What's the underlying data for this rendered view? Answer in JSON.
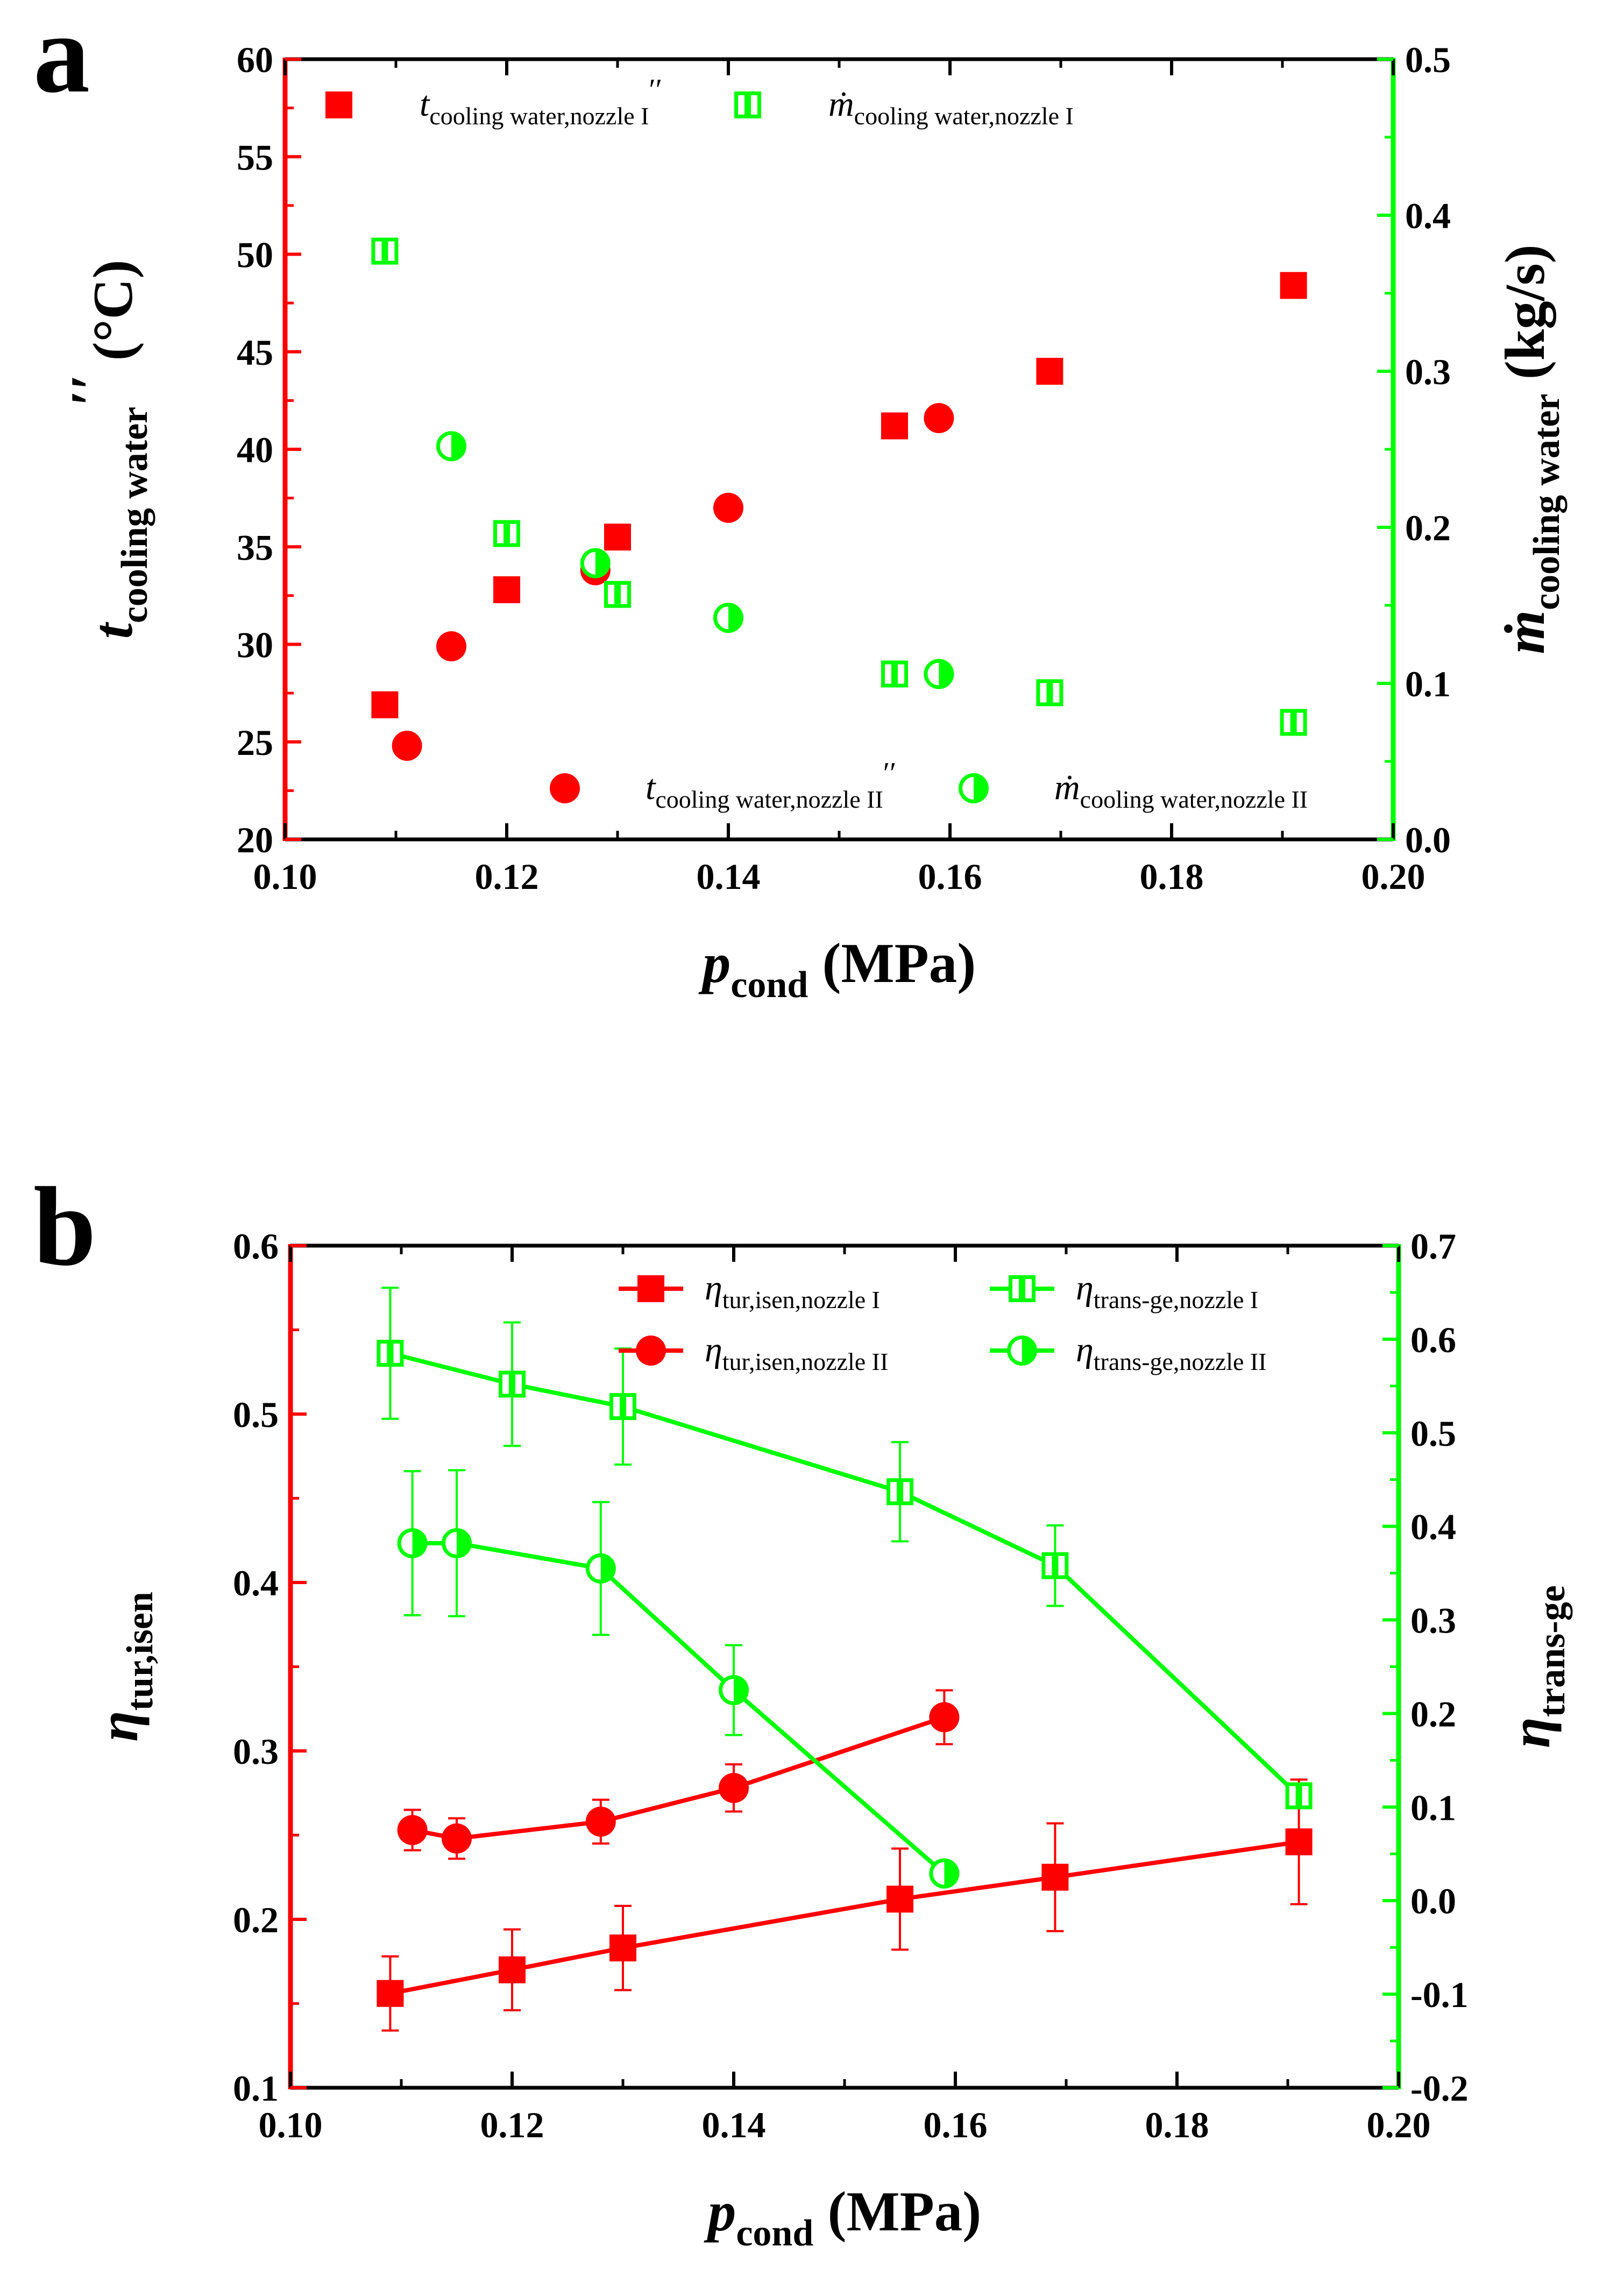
{
  "chart_data": [
    {
      "panel": "a",
      "type": "scatter",
      "xlabel": {
        "main": "p",
        "sub": "cond",
        "unit": "(MPa)"
      },
      "ylabel_left": {
        "main": "t",
        "sub": "cooling water",
        "sup": "′′",
        "unit": "(°C)"
      },
      "ylabel_right": {
        "main": "ṁ",
        "sub": "cooling water",
        "unit": "(kg/s)"
      },
      "xlim": [
        0.1,
        0.2
      ],
      "ylim_left": [
        20,
        60
      ],
      "ylim_right": [
        0.0,
        0.5
      ],
      "x_ticks": [
        "0.10",
        "0.12",
        "0.14",
        "0.16",
        "0.18",
        "0.20"
      ],
      "y_left_ticks": [
        "20",
        "25",
        "30",
        "35",
        "40",
        "45",
        "50",
        "55",
        "60"
      ],
      "y_right_ticks": [
        "0.0",
        "0.1",
        "0.2",
        "0.3",
        "0.4",
        "0.5"
      ],
      "left_color": "#ff0000",
      "right_color": "#00ff00",
      "series": [
        {
          "name": "t cooling water,nozzle I ′′",
          "axis": "left",
          "marker": "square-filled",
          "color": "#ff0000",
          "x": [
            0.109,
            0.12,
            0.13,
            0.155,
            0.169,
            0.191
          ],
          "y": [
            26.9,
            32.8,
            35.5,
            41.2,
            44.0,
            48.4
          ]
        },
        {
          "name": "t cooling water,nozzle II ′′",
          "axis": "left",
          "marker": "circle-filled",
          "color": "#ff0000",
          "x": [
            0.111,
            0.115,
            0.128,
            0.14,
            0.159
          ],
          "y": [
            24.8,
            29.9,
            33.8,
            37.0,
            41.6
          ]
        },
        {
          "name": "ṁ cooling water,nozzle I",
          "axis": "right",
          "marker": "square-open",
          "color": "#00ff00",
          "x": [
            0.109,
            0.12,
            0.13,
            0.155,
            0.169,
            0.191
          ],
          "y": [
            0.377,
            0.196,
            0.157,
            0.106,
            0.094,
            0.075
          ]
        },
        {
          "name": "ṁ cooling water,nozzle II",
          "axis": "right",
          "marker": "circle-half",
          "color": "#00ff00",
          "x": [
            0.115,
            0.128,
            0.14,
            0.159
          ],
          "y": [
            0.252,
            0.177,
            0.142,
            0.106
          ]
        }
      ],
      "legend": [
        {
          "main": "t",
          "sub": "cooling water,nozzle I",
          "sup": "′′"
        },
        {
          "main": "ṁ",
          "sub": "cooling water,nozzle I",
          "sup": ""
        },
        {
          "main": "t",
          "sub": "cooling water,nozzle II",
          "sup": "′′"
        },
        {
          "main": "ṁ",
          "sub": "cooling water,nozzle II",
          "sup": ""
        }
      ]
    },
    {
      "panel": "b",
      "type": "line",
      "xlabel": {
        "main": "p",
        "sub": "cond",
        "unit": "(MPa)"
      },
      "ylabel_left": {
        "main": "η",
        "sub": "tur,isen"
      },
      "ylabel_right": {
        "main": "η",
        "sub": "trans-ge"
      },
      "xlim": [
        0.1,
        0.2
      ],
      "ylim_left": [
        0.1,
        0.6
      ],
      "ylim_right": [
        -0.2,
        0.7
      ],
      "x_ticks": [
        "0.10",
        "0.12",
        "0.14",
        "0.16",
        "0.18",
        "0.20"
      ],
      "y_left_ticks": [
        "0.1",
        "0.2",
        "0.3",
        "0.4",
        "0.5",
        "0.6"
      ],
      "y_right_ticks": [
        "-0.2",
        "-0.1",
        "0.0",
        "0.1",
        "0.2",
        "0.3",
        "0.4",
        "0.5",
        "0.6",
        "0.7"
      ],
      "left_color": "#ff0000",
      "right_color": "#00ff00",
      "series": [
        {
          "name": "η tur,isen,nozzle I",
          "axis": "left",
          "marker": "square-filled",
          "color": "#ff0000",
          "x": [
            0.109,
            0.12,
            0.13,
            0.155,
            0.169,
            0.191
          ],
          "y": [
            0.156,
            0.17,
            0.183,
            0.212,
            0.225,
            0.246
          ],
          "err": [
            0.022,
            0.024,
            0.025,
            0.03,
            0.032,
            0.037
          ]
        },
        {
          "name": "η tur,isen,nozzle II",
          "axis": "left",
          "marker": "circle-filled",
          "color": "#ff0000",
          "x": [
            0.111,
            0.115,
            0.128,
            0.14,
            0.159
          ],
          "y": [
            0.253,
            0.248,
            0.258,
            0.278,
            0.32
          ],
          "err": [
            0.012,
            0.012,
            0.013,
            0.014,
            0.016
          ]
        },
        {
          "name": "η trans-ge,nozzle I",
          "axis": "right",
          "marker": "square-open",
          "color": "#00ff00",
          "x": [
            0.109,
            0.12,
            0.13,
            0.155,
            0.169,
            0.191
          ],
          "y": [
            0.585,
            0.552,
            0.528,
            0.437,
            0.358,
            0.112
          ],
          "err": [
            0.07,
            0.066,
            0.062,
            0.053,
            0.043,
            0.005
          ]
        },
        {
          "name": "η trans-ge,nozzle II",
          "axis": "right",
          "marker": "circle-half",
          "color": "#00ff00",
          "x": [
            0.111,
            0.115,
            0.128,
            0.14,
            0.159
          ],
          "y": [
            0.382,
            0.382,
            0.355,
            0.225,
            0.029
          ],
          "err": [
            0.077,
            0.078,
            0.071,
            0.048,
            0.005
          ]
        }
      ],
      "legend": [
        {
          "main": "η",
          "sub": "tur,isen,nozzle I",
          "sup": ""
        },
        {
          "main": "η",
          "sub": "trans-ge,nozzle I",
          "sup": ""
        },
        {
          "main": "η",
          "sub": "tur,isen,nozzle II",
          "sup": ""
        },
        {
          "main": "η",
          "sub": "trans-ge,nozzle II",
          "sup": ""
        }
      ]
    }
  ]
}
